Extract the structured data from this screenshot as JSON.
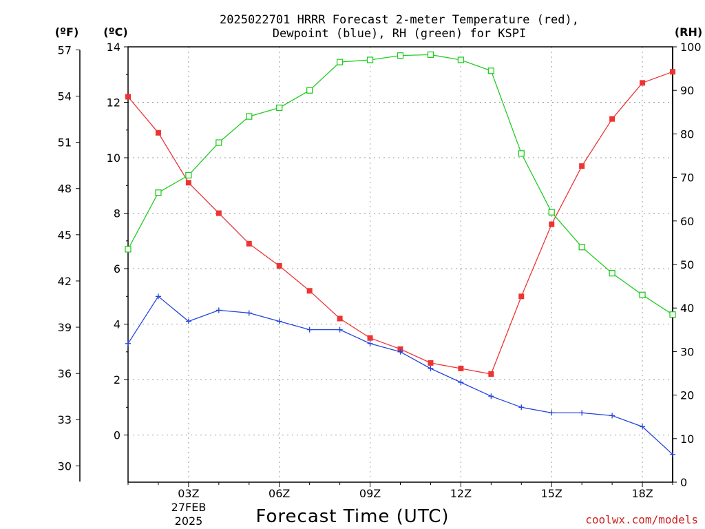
{
  "title_line1": "2025022701 HRRR Forecast 2-meter Temperature (red),",
  "title_line2": "Dewpoint (blue), RH (green) for KSPI",
  "units": {
    "fahrenheit": "(ºF)",
    "celsius": "(ºC)",
    "rh": "(RH)"
  },
  "xlabel": "Forecast Time (UTC)",
  "x_date_label": [
    "27FEB",
    "2025"
  ],
  "credit": "coolwx.com/models",
  "colors": {
    "temperature": "#ee3333",
    "dewpoint": "#2244dd",
    "rh": "#22cc22",
    "credit": "#cc2222"
  },
  "chart_data": {
    "type": "line",
    "title": "2025022701 HRRR Forecast 2-meter Temperature (red), Dewpoint (blue), RH (green) for KSPI",
    "xlabel": "Forecast Time (UTC)",
    "x": [
      "01Z",
      "02Z",
      "03Z",
      "04Z",
      "05Z",
      "06Z",
      "07Z",
      "08Z",
      "09Z",
      "10Z",
      "11Z",
      "12Z",
      "13Z",
      "14Z",
      "15Z",
      "16Z",
      "17Z",
      "18Z",
      "19Z"
    ],
    "x_tick_labels": [
      "03Z",
      "06Z",
      "09Z",
      "12Z",
      "15Z",
      "18Z"
    ],
    "y_left_celsius": {
      "range": [
        -1.7,
        14
      ],
      "ticks": [
        0,
        2,
        4,
        6,
        8,
        10,
        12,
        14
      ]
    },
    "y_left_fahrenheit": {
      "ticks": [
        30,
        33,
        36,
        39,
        42,
        45,
        48,
        51,
        54,
        57
      ]
    },
    "y_right_rh": {
      "range": [
        0,
        100
      ],
      "ticks": [
        0,
        10,
        20,
        30,
        40,
        50,
        60,
        70,
        80,
        90,
        100
      ]
    },
    "grid": true,
    "series": [
      {
        "name": "Temperature",
        "axis": "celsius",
        "marker": "filled-square",
        "values": [
          12.2,
          10.9,
          9.1,
          8.0,
          6.9,
          6.1,
          5.2,
          4.2,
          3.5,
          3.1,
          2.6,
          2.4,
          2.2,
          5.0,
          7.6,
          9.7,
          11.4,
          12.7,
          13.1
        ]
      },
      {
        "name": "Dewpoint",
        "axis": "celsius",
        "marker": "plus",
        "values": [
          3.3,
          5.0,
          4.1,
          4.5,
          4.4,
          4.1,
          3.8,
          3.8,
          3.3,
          3.0,
          2.4,
          1.9,
          1.4,
          1.0,
          0.8,
          0.8,
          0.7,
          0.3,
          -0.7
        ]
      },
      {
        "name": "RH",
        "axis": "rh",
        "marker": "open-square",
        "values": [
          53.5,
          66.5,
          70.5,
          78,
          84,
          86,
          90,
          96.5,
          97,
          98,
          98.2,
          97,
          94.5,
          75.5,
          62,
          54,
          48,
          43,
          38.5
        ]
      }
    ]
  }
}
